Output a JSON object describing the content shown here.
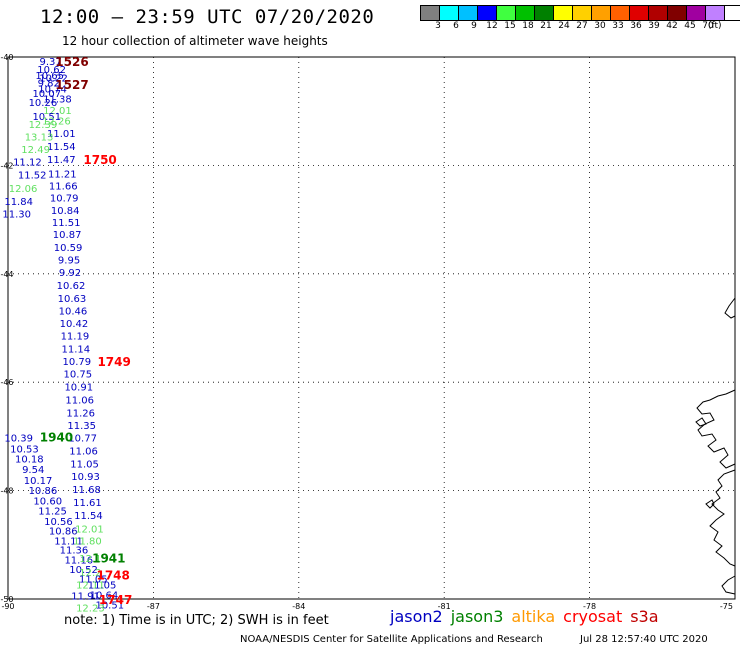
{
  "title": "12:00 – 23:59 UTC 07/20/2020",
  "subtitle": "12 hour collection of altimeter wave heights",
  "colorbar": {
    "colors": [
      "#808080",
      "#00ffff",
      "#00c0ff",
      "#0000ff",
      "#40ff40",
      "#00c000",
      "#008000",
      "#ffff00",
      "#ffd000",
      "#ffa000",
      "#ff6000",
      "#e00000",
      "#b00000",
      "#800000",
      "#a000a0",
      "#c080ff",
      "#ffffff",
      "#000000"
    ],
    "labels": [
      "3",
      "6",
      "9",
      "12",
      "15",
      "18",
      "21",
      "24",
      "27",
      "30",
      "33",
      "36",
      "39",
      "42",
      "45",
      "70"
    ],
    "unit": "(ft)"
  },
  "axes": {
    "lon_ticks": [
      "-90",
      "-87",
      "-84",
      "-81",
      "-78",
      "-75"
    ],
    "lat_ticks": [
      "-40",
      "-42",
      "-44",
      "-46",
      "-48",
      "-50"
    ]
  },
  "colors": {
    "jason2": "#0000c0",
    "jason3": "#008000",
    "altika": "#ff9900",
    "cryosat": "#ff0000",
    "s3a": "#c00000",
    "light_green": "#60e060",
    "dark_red": "#800000"
  },
  "values": [
    {
      "lon": -89.12,
      "lat": -40.07,
      "v": "9.37",
      "c": "jason2"
    },
    {
      "lon": -89.1,
      "lat": -40.22,
      "v": "10.62",
      "c": "jason2"
    },
    {
      "lon": -89.14,
      "lat": -40.33,
      "v": "10.65",
      "c": "jason2"
    },
    {
      "lon": -89.06,
      "lat": -40.38,
      "v": "10.22",
      "c": "jason2"
    },
    {
      "lon": -89.16,
      "lat": -40.47,
      "v": "9.82",
      "c": "jason2"
    },
    {
      "lon": -89.08,
      "lat": -40.58,
      "v": "10.74",
      "c": "jason2"
    },
    {
      "lon": -89.2,
      "lat": -40.66,
      "v": "10.07",
      "c": "jason2"
    },
    {
      "lon": -88.98,
      "lat": -40.77,
      "v": "11.38",
      "c": "jason2"
    },
    {
      "lon": -89.28,
      "lat": -40.83,
      "v": "10.26",
      "c": "jason2"
    },
    {
      "lon": -88.98,
      "lat": -40.98,
      "v": "12.01",
      "c": "light_green"
    },
    {
      "lon": -89.2,
      "lat": -41.09,
      "v": "10.51",
      "c": "jason2"
    },
    {
      "lon": -89.0,
      "lat": -41.17,
      "v": "12.26",
      "c": "light_green"
    },
    {
      "lon": -89.28,
      "lat": -41.24,
      "v": "12.39",
      "c": "light_green"
    },
    {
      "lon": -88.9,
      "lat": -41.4,
      "v": "11.01",
      "c": "jason2"
    },
    {
      "lon": -89.36,
      "lat": -41.47,
      "v": "13.13",
      "c": "light_green"
    },
    {
      "lon": -88.9,
      "lat": -41.64,
      "v": "11.54",
      "c": "jason2"
    },
    {
      "lon": -89.43,
      "lat": -41.7,
      "v": "12.49",
      "c": "light_green"
    },
    {
      "lon": -88.9,
      "lat": -41.88,
      "v": "11.47",
      "c": "jason2"
    },
    {
      "lon": -89.6,
      "lat": -41.93,
      "v": "11.12",
      "c": "jason2"
    },
    {
      "lon": -88.88,
      "lat": -42.15,
      "v": "11.21",
      "c": "jason2"
    },
    {
      "lon": -89.5,
      "lat": -42.17,
      "v": "11.52",
      "c": "jason2"
    },
    {
      "lon": -88.86,
      "lat": -42.37,
      "v": "11.66",
      "c": "jason2"
    },
    {
      "lon": -89.69,
      "lat": -42.42,
      "v": "12.06",
      "c": "light_green"
    },
    {
      "lon": -88.84,
      "lat": -42.59,
      "v": "10.79",
      "c": "jason2"
    },
    {
      "lon": -89.78,
      "lat": -42.66,
      "v": "11.84",
      "c": "jason2"
    },
    {
      "lon": -88.82,
      "lat": -42.82,
      "v": "10.84",
      "c": "jason2"
    },
    {
      "lon": -89.82,
      "lat": -42.89,
      "v": "11.30",
      "c": "jason2"
    },
    {
      "lon": -88.8,
      "lat": -43.04,
      "v": "11.51",
      "c": "jason2"
    },
    {
      "lon": -88.78,
      "lat": -43.27,
      "v": "10.87",
      "c": "jason2"
    },
    {
      "lon": -88.76,
      "lat": -43.51,
      "v": "10.59",
      "c": "jason2"
    },
    {
      "lon": -88.74,
      "lat": -43.74,
      "v": "9.95",
      "c": "jason2"
    },
    {
      "lon": -88.72,
      "lat": -43.97,
      "v": "9.92",
      "c": "jason2"
    },
    {
      "lon": -88.7,
      "lat": -44.21,
      "v": "10.62",
      "c": "jason2"
    },
    {
      "lon": -88.68,
      "lat": -44.45,
      "v": "10.63",
      "c": "jason2"
    },
    {
      "lon": -88.66,
      "lat": -44.68,
      "v": "10.46",
      "c": "jason2"
    },
    {
      "lon": -88.64,
      "lat": -44.91,
      "v": "10.42",
      "c": "jason2"
    },
    {
      "lon": -88.62,
      "lat": -45.14,
      "v": "11.19",
      "c": "jason2"
    },
    {
      "lon": -88.6,
      "lat": -45.38,
      "v": "11.14",
      "c": "jason2"
    },
    {
      "lon": -88.58,
      "lat": -45.61,
      "v": "10.79",
      "c": "jason2"
    },
    {
      "lon": -88.56,
      "lat": -45.84,
      "v": "10.75",
      "c": "jason2"
    },
    {
      "lon": -88.54,
      "lat": -46.08,
      "v": "10.91",
      "c": "jason2"
    },
    {
      "lon": -88.52,
      "lat": -46.32,
      "v": "11.06",
      "c": "jason2"
    },
    {
      "lon": -88.5,
      "lat": -46.56,
      "v": "11.26",
      "c": "jason2"
    },
    {
      "lon": -88.48,
      "lat": -46.79,
      "v": "11.35",
      "c": "jason2"
    },
    {
      "lon": -89.78,
      "lat": -47.02,
      "v": "10.39",
      "c": "jason2"
    },
    {
      "lon": -88.46,
      "lat": -47.02,
      "v": "10.77",
      "c": "jason2"
    },
    {
      "lon": -89.66,
      "lat": -47.22,
      "v": "10.53",
      "c": "jason2"
    },
    {
      "lon": -88.44,
      "lat": -47.26,
      "v": "11.06",
      "c": "jason2"
    },
    {
      "lon": -89.56,
      "lat": -47.41,
      "v": "10.18",
      "c": "jason2"
    },
    {
      "lon": -88.42,
      "lat": -47.5,
      "v": "11.05",
      "c": "jason2"
    },
    {
      "lon": -89.48,
      "lat": -47.6,
      "v": "9.54",
      "c": "jason2"
    },
    {
      "lon": -88.4,
      "lat": -47.73,
      "v": "10.93",
      "c": "jason2"
    },
    {
      "lon": -89.38,
      "lat": -47.8,
      "v": "10.17",
      "c": "jason2"
    },
    {
      "lon": -89.28,
      "lat": -47.99,
      "v": "10.86",
      "c": "jason2"
    },
    {
      "lon": -88.38,
      "lat": -47.97,
      "v": "11.68",
      "c": "jason2"
    },
    {
      "lon": -89.18,
      "lat": -48.18,
      "v": "10.60",
      "c": "jason2"
    },
    {
      "lon": -88.36,
      "lat": -48.21,
      "v": "11.61",
      "c": "jason2"
    },
    {
      "lon": -89.08,
      "lat": -48.37,
      "v": "11.25",
      "c": "jason2"
    },
    {
      "lon": -88.34,
      "lat": -48.45,
      "v": "11.54",
      "c": "jason2"
    },
    {
      "lon": -88.96,
      "lat": -48.56,
      "v": "10.56",
      "c": "jason2"
    },
    {
      "lon": -88.86,
      "lat": -48.74,
      "v": "10.86",
      "c": "jason2"
    },
    {
      "lon": -88.32,
      "lat": -48.7,
      "v": "12.01",
      "c": "light_green"
    },
    {
      "lon": -88.75,
      "lat": -48.92,
      "v": "11.11",
      "c": "jason2"
    },
    {
      "lon": -88.36,
      "lat": -48.92,
      "v": "11.80",
      "c": "light_green"
    },
    {
      "lon": -88.64,
      "lat": -49.09,
      "v": "11.36",
      "c": "jason2"
    },
    {
      "lon": -88.54,
      "lat": -49.27,
      "v": "11.16",
      "c": "jason2"
    },
    {
      "lon": -88.3,
      "lat": -49.24,
      "v": "12.1",
      "c": "light_green"
    },
    {
      "lon": -88.44,
      "lat": -49.45,
      "v": "10.52",
      "c": "jason2"
    },
    {
      "lon": -88.3,
      "lat": -49.5,
      "v": "12.2",
      "c": "light_green"
    },
    {
      "lon": -88.24,
      "lat": -49.62,
      "v": "11.05",
      "c": "jason2"
    },
    {
      "lon": -88.3,
      "lat": -49.73,
      "v": "12.11",
      "c": "light_green"
    },
    {
      "lon": -88.06,
      "lat": -49.73,
      "v": "11.05",
      "c": "jason2"
    },
    {
      "lon": -88.4,
      "lat": -49.94,
      "v": "11.91",
      "c": "jason2"
    },
    {
      "lon": -88.02,
      "lat": -49.92,
      "v": "10.64",
      "c": "jason2"
    },
    {
      "lon": -87.9,
      "lat": -50.1,
      "v": "10.51",
      "c": "jason2"
    },
    {
      "lon": -88.3,
      "lat": -50.16,
      "v": "12.23",
      "c": "light_green"
    }
  ],
  "times": [
    {
      "lon": -88.68,
      "lat": -40.07,
      "t": "1526",
      "c": "dark_red"
    },
    {
      "lon": -88.68,
      "lat": -40.5,
      "t": "1527",
      "c": "dark_red"
    },
    {
      "lon": -88.1,
      "lat": -41.88,
      "t": "1750",
      "c": "cryosat"
    },
    {
      "lon": -87.81,
      "lat": -45.61,
      "t": "1749",
      "c": "cryosat"
    },
    {
      "lon": -89.0,
      "lat": -47.0,
      "t": "1940",
      "c": "jason3"
    },
    {
      "lon": -87.92,
      "lat": -49.23,
      "t": "1941",
      "c": "jason3"
    },
    {
      "lon": -87.83,
      "lat": -49.55,
      "t": "1748",
      "c": "cryosat"
    },
    {
      "lon": -87.78,
      "lat": -50.0,
      "t": "1747",
      "c": "cryosat"
    }
  ],
  "note": "note: 1) Time is in UTC; 2) SWH is in feet",
  "legend": [
    {
      "label": "jason2",
      "c": "jason2"
    },
    {
      "label": "jason3",
      "c": "jason3"
    },
    {
      "label": "altika",
      "c": "altika"
    },
    {
      "label": "cryosat",
      "c": "cryosat"
    },
    {
      "label": "s3a",
      "c": "s3a"
    }
  ],
  "credit": "NOAA/NESDIS Center for Satellite Applications and Research",
  "timestamp": "Jul 28 12:57:40 UTC 2020"
}
